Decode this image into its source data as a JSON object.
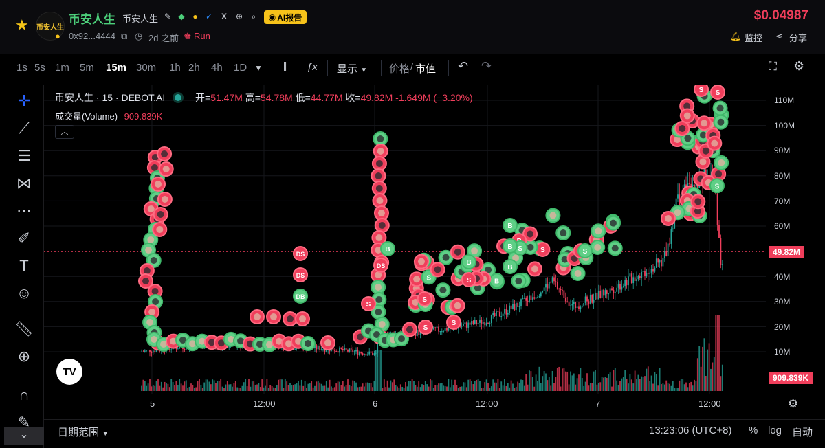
{
  "header": {
    "token_name": "币安人生",
    "token_sub": "币安人生",
    "avatar_text": "币安人生",
    "ai_label": "AI报告",
    "address": "0x92...4444",
    "age": "2d 之前",
    "run_label": "Run",
    "price": "$0.04987",
    "watch_label": "监控",
    "share_label": "分享"
  },
  "toolbar": {
    "timeframes": [
      "1s",
      "5s",
      "1m",
      "5m",
      "15m",
      "30m",
      "1h",
      "2h",
      "4h",
      "1D"
    ],
    "active_timeframe": "15m",
    "display_label": "显示",
    "price_label": "价格",
    "mcap_label": "市值",
    "separator": "/"
  },
  "legend": {
    "title": "币安人生 · 15 · DEBOT.AI",
    "open_label": "开=",
    "open": "51.47M",
    "high_label": "高=",
    "high": "54.78M",
    "low_label": "低=",
    "low": "44.77M",
    "close_label": "收=",
    "close": "49.82M",
    "change": "-1.649M (−3.20%)",
    "volume_label": "成交量(Volume)",
    "volume": "909.839K"
  },
  "price_axis": {
    "labels": [
      "110M",
      "100M",
      "90M",
      "80M",
      "70M",
      "60M",
      "50M",
      "40M",
      "30M",
      "20M",
      "10M"
    ],
    "current_badge": "49.82M",
    "volume_badge": "909.839K"
  },
  "time_axis": {
    "labels": [
      "5",
      "12:00",
      "6",
      "12:00",
      "7",
      "12:00"
    ]
  },
  "bottom": {
    "date_range": "日期范围",
    "clock": "13:23:06 (UTC+8)",
    "percent": "%",
    "log": "log",
    "auto": "自动"
  },
  "markers": {
    "buy": "B",
    "sell": "S",
    "ds": "DS",
    "db": "DB"
  },
  "colors": {
    "up": "#26a69a",
    "down": "#f03e5b",
    "accent": "#f6c21a",
    "name": "#4ccf7a",
    "price": "#f03e5b"
  },
  "chart_data": {
    "type": "candlestick",
    "y_unit": "market cap",
    "ylim": [
      0,
      115000000
    ],
    "x_labels": [
      "5",
      "12:00",
      "6",
      "12:00",
      "7",
      "12:00"
    ],
    "last": {
      "open": 51470000,
      "high": 54780000,
      "low": 44770000,
      "close": 49820000
    },
    "last_volume": 909839
  }
}
